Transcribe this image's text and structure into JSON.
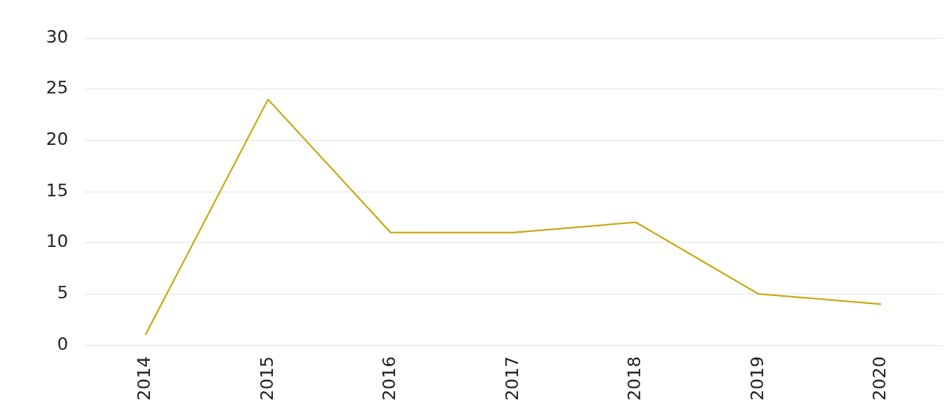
{
  "chart_data": {
    "type": "line",
    "categories": [
      "2014",
      "2015",
      "2016",
      "2017",
      "2018",
      "2019",
      "2020"
    ],
    "series": [
      {
        "color": "#c9a80f",
        "values": [
          1,
          24,
          11,
          11,
          12,
          5,
          4
        ]
      }
    ],
    "ylim": [
      0,
      30
    ],
    "yticks": [
      0,
      5,
      10,
      15,
      20,
      25,
      30
    ],
    "grid": "y",
    "legend": false,
    "marker": "none",
    "line_style": "solid"
  }
}
